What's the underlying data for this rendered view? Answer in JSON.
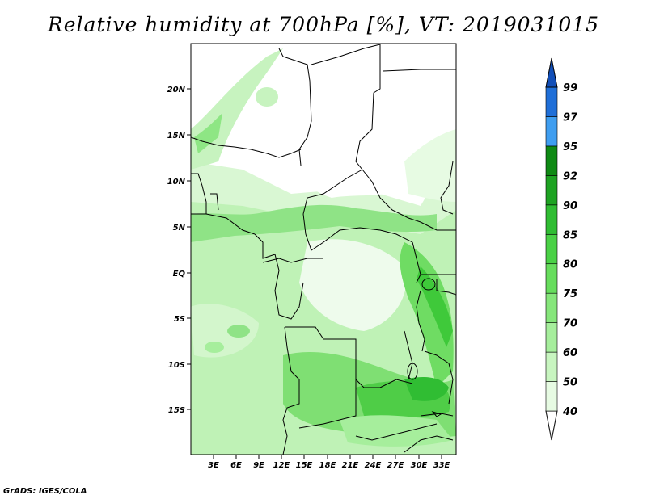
{
  "title": "Relative humidity at 700hPa [%], VT: 2019031015",
  "credit": "GrADS: IGES/COLA",
  "map": {
    "lat_labels": [
      "20N",
      "15N",
      "10N",
      "5N",
      "EQ",
      "5S",
      "10S",
      "15S"
    ],
    "lon_labels": [
      "3E",
      "6E",
      "9E",
      "12E",
      "15E",
      "18E",
      "21E",
      "24E",
      "27E",
      "30E",
      "33E"
    ]
  },
  "colorbar": {
    "levels": [
      "40",
      "50",
      "60",
      "70",
      "75",
      "80",
      "85",
      "90",
      "92",
      "95",
      "97",
      "99"
    ],
    "colors": [
      "#ffffff",
      "#e7fbe3",
      "#c8f5c0",
      "#a6ee9c",
      "#86e67b",
      "#67dd5d",
      "#4ad146",
      "#30bd33",
      "#1ea322",
      "#0f8a14",
      "#3f9ef0",
      "#1f6fd8",
      "#124fb8"
    ]
  }
}
